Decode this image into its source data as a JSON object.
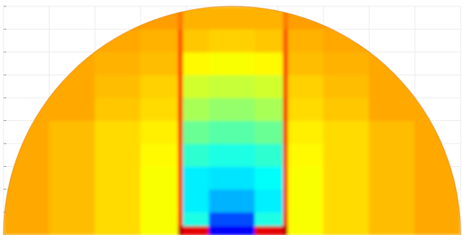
{
  "chart_data": {
    "type": "heatmap",
    "xlim": [
      -1,
      1
    ],
    "ylim": [
      0,
      1
    ],
    "xticks": [
      -1,
      -0.8,
      -0.6,
      -0.4,
      -0.2,
      0,
      0.2,
      0.4,
      0.6,
      0.8,
      1
    ],
    "yticks": [
      0,
      0.1,
      0.2,
      0.3,
      0.4,
      0.5,
      0.6,
      0.7,
      0.8,
      0.9,
      1
    ],
    "grid": true,
    "tick_labels": false,
    "zlim": [
      0,
      1
    ],
    "x_edges": [
      -1,
      -0.8,
      -0.6,
      -0.4,
      -0.235,
      -0.215,
      -0.1,
      0,
      0.1,
      0.225,
      0.245,
      0.4,
      0.6,
      0.8,
      1
    ],
    "y_edges": [
      0,
      0.04,
      0.1,
      0.2,
      0.3,
      0.4,
      0.5,
      0.6,
      0.7,
      0.8,
      0.9,
      1
    ],
    "cells": [
      [
        0.71,
        0.69,
        0.66,
        0.62,
        0.95,
        0.9,
        0.12,
        0.12,
        0.9,
        0.95,
        0.62,
        0.66,
        0.69,
        0.71
      ],
      [
        0.71,
        0.69,
        0.66,
        0.62,
        0.88,
        0.4,
        0.2,
        0.2,
        0.4,
        0.88,
        0.62,
        0.66,
        0.69,
        0.71
      ],
      [
        0.71,
        0.69,
        0.66,
        0.62,
        0.84,
        0.36,
        0.3,
        0.3,
        0.36,
        0.84,
        0.62,
        0.66,
        0.69,
        0.71
      ],
      [
        0.71,
        0.69,
        0.66,
        0.62,
        0.84,
        0.36,
        0.35,
        0.35,
        0.38,
        0.84,
        0.62,
        0.66,
        0.69,
        0.71
      ],
      [
        0.71,
        0.69,
        0.66,
        0.63,
        0.84,
        0.42,
        0.4,
        0.4,
        0.42,
        0.84,
        0.63,
        0.66,
        0.69,
        0.71
      ],
      [
        0.71,
        0.69,
        0.66,
        0.64,
        0.84,
        0.48,
        0.46,
        0.46,
        0.48,
        0.84,
        0.64,
        0.66,
        0.69,
        0.71
      ],
      [
        0.71,
        0.71,
        0.68,
        0.66,
        0.84,
        0.54,
        0.52,
        0.52,
        0.54,
        0.84,
        0.66,
        0.68,
        0.71,
        0.71
      ],
      [
        0.71,
        0.71,
        0.69,
        0.67,
        0.82,
        0.58,
        0.57,
        0.57,
        0.58,
        0.82,
        0.67,
        0.69,
        0.71,
        0.71
      ],
      [
        0.71,
        0.71,
        0.7,
        0.69,
        0.82,
        0.63,
        0.62,
        0.62,
        0.63,
        0.82,
        0.69,
        0.7,
        0.71,
        0.71
      ],
      [
        0.71,
        0.71,
        0.71,
        0.7,
        0.8,
        0.68,
        0.67,
        0.67,
        0.68,
        0.8,
        0.7,
        0.71,
        0.71,
        0.71
      ],
      [
        0.72,
        0.72,
        0.72,
        0.72,
        0.76,
        0.7,
        0.7,
        0.7,
        0.7,
        0.76,
        0.72,
        0.72,
        0.72,
        0.72
      ]
    ]
  }
}
